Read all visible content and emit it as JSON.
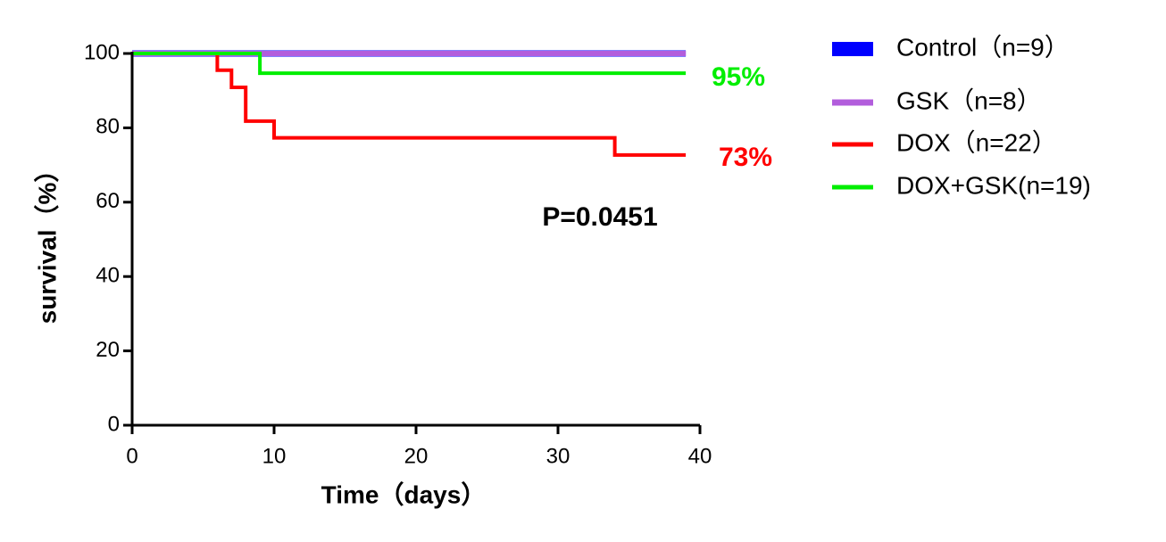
{
  "chart_data": {
    "type": "line",
    "step": true,
    "x_label": "Time（days）",
    "y_label": "survival（%）",
    "xlim": [
      0,
      40
    ],
    "xticks": [
      0,
      10,
      20,
      30,
      40
    ],
    "ylim": [
      0,
      100
    ],
    "yticks": [
      0,
      20,
      40,
      60,
      80,
      100
    ],
    "grid": false,
    "legend": "right",
    "series": [
      {
        "name": "Control（n=9）",
        "color": "#0000ff",
        "x": [
          0,
          39
        ],
        "values": [
          100,
          100
        ]
      },
      {
        "name": "GSK（n=8）",
        "color": "#b25ddc",
        "x": [
          0,
          39
        ],
        "values": [
          100,
          100
        ]
      },
      {
        "name": "DOX（n=22）",
        "color": "#ff0000",
        "x": [
          0,
          6,
          6,
          7,
          7,
          8,
          8,
          10,
          10,
          34,
          34,
          39
        ],
        "values": [
          100,
          100,
          95.5,
          95.5,
          90.9,
          90.9,
          81.8,
          81.8,
          77.3,
          77.3,
          72.7,
          72.7
        ]
      },
      {
        "name": "DOX+GSK(n=19)",
        "color": "#00ee00",
        "x": [
          0,
          9,
          9,
          39
        ],
        "values": [
          100,
          100,
          94.7,
          94.7
        ]
      }
    ],
    "annotations": [
      {
        "text": "95%",
        "color": "#00ee00"
      },
      {
        "text": "73%",
        "color": "#ff0000"
      },
      {
        "text": "P=0.0451",
        "color": "#000000"
      }
    ]
  }
}
